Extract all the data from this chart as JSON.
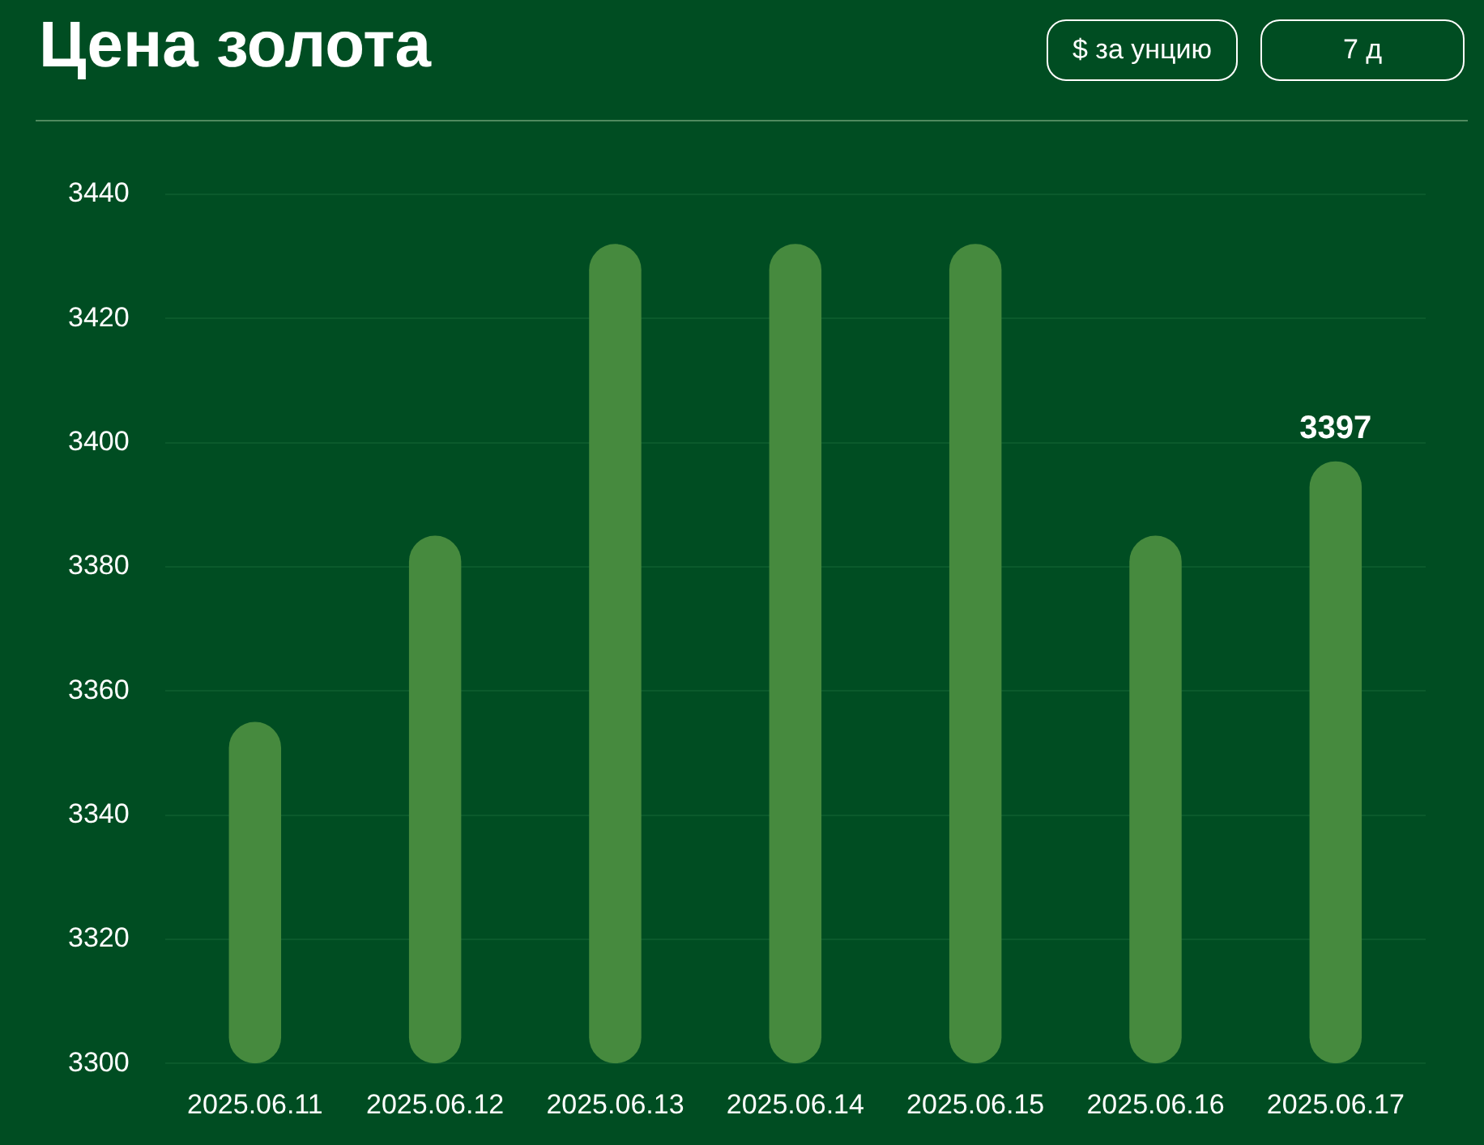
{
  "chart_data": {
    "type": "bar",
    "title": "Цена золота",
    "annotations": [
      "$ за унцию",
      "7 д"
    ],
    "categories": [
      "2025.06.11",
      "2025.06.12",
      "2025.06.13",
      "2025.06.14",
      "2025.06.15",
      "2025.06.16",
      "2025.06.17"
    ],
    "values": [
      3355,
      3385,
      3432,
      3432,
      3432,
      3385,
      3397
    ],
    "value_labels": [
      null,
      null,
      null,
      null,
      null,
      null,
      "3397"
    ],
    "color": "#468a3e",
    "ylim": [
      3300,
      3440
    ],
    "yticks": [
      3300,
      3320,
      3340,
      3360,
      3380,
      3400,
      3420,
      3440
    ],
    "grid": "y",
    "legend": false
  }
}
